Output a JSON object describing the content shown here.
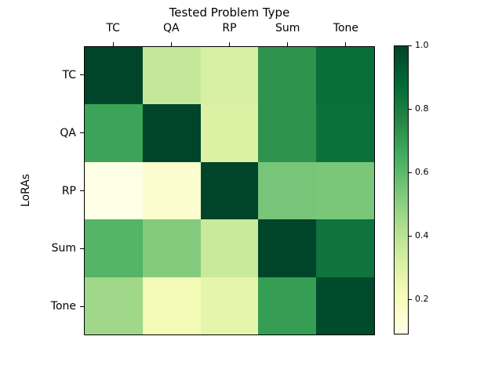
{
  "chart_data": {
    "type": "heatmap",
    "title": "Tested Problem Type",
    "xlabel": "Tested Problem Type",
    "ylabel": "LoRAs",
    "x_categories": [
      "TC",
      "QA",
      "RP",
      "Sum",
      "Tone"
    ],
    "y_categories": [
      "TC",
      "QA",
      "RP",
      "Sum",
      "Tone"
    ],
    "matrix": [
      [
        1.0,
        0.37,
        0.32,
        0.73,
        0.86
      ],
      [
        0.68,
        1.0,
        0.31,
        0.73,
        0.85
      ],
      [
        0.09,
        0.15,
        1.0,
        0.55,
        0.54
      ],
      [
        0.62,
        0.52,
        0.36,
        1.0,
        0.84
      ],
      [
        0.46,
        0.22,
        0.27,
        0.7,
        0.98
      ]
    ],
    "vmin": 0.09,
    "vmax": 1.0,
    "colormap": "YlGn",
    "colorbar_ticks": [
      0.2,
      0.4,
      0.6,
      0.8,
      1.0
    ],
    "colorbar_tick_labels": [
      "0.2",
      "0.4",
      "0.6",
      "0.8",
      "1.0"
    ],
    "legend_position": "right-colorbar",
    "grid": false
  },
  "colors": {
    "background": "#ffffff",
    "axis": "#000000",
    "text": "#000000",
    "colormap_min": "#ffffe5",
    "colormap_max": "#004529"
  }
}
